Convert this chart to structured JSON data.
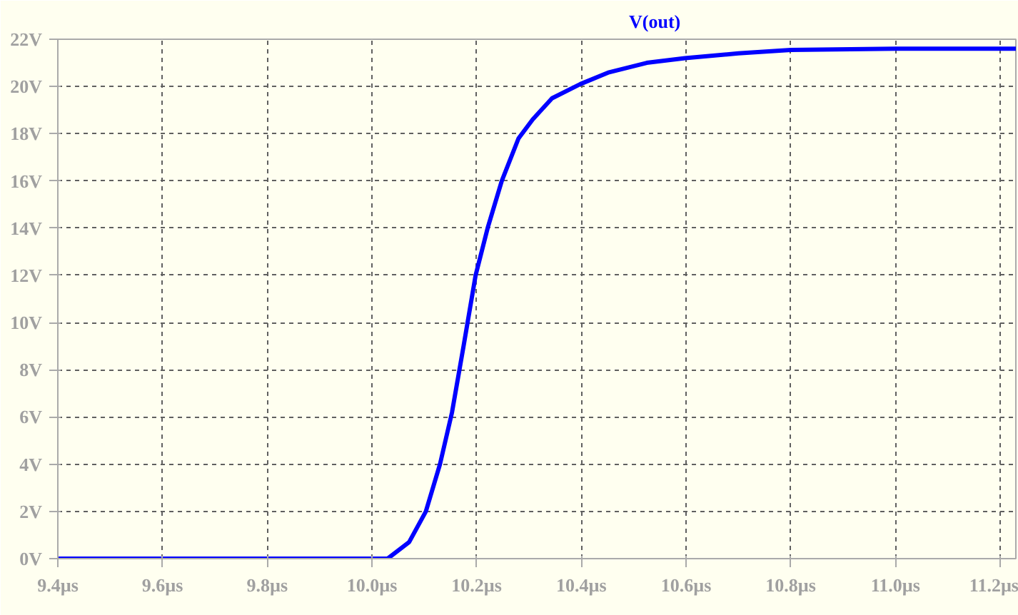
{
  "chart_data": {
    "type": "line",
    "title": "V(out)",
    "x": [
      9.4,
      10.0,
      10.03,
      10.071,
      10.103,
      10.13,
      10.153,
      10.175,
      10.198,
      10.221,
      10.248,
      10.28,
      10.307,
      10.344,
      10.398,
      10.453,
      10.525,
      10.598,
      10.7,
      10.8,
      11.0,
      11.23
    ],
    "series": [
      {
        "color": "#0000ff",
        "values": [
          0,
          0,
          0,
          0.7,
          2.0,
          4.0,
          6.2,
          9.0,
          12.0,
          14.0,
          16.0,
          17.8,
          18.6,
          19.5,
          20.1,
          20.6,
          21.0,
          21.2,
          21.4,
          21.55,
          21.6,
          21.6
        ]
      }
    ],
    "xlim": [
      9.4,
      11.23
    ],
    "ylim": [
      0,
      22
    ],
    "xticks": [
      {
        "value": 9.4,
        "label": "9.4µs"
      },
      {
        "value": 9.6,
        "label": "9.6µs"
      },
      {
        "value": 9.8,
        "label": "9.8µs"
      },
      {
        "value": 10.0,
        "label": "10.0µs"
      },
      {
        "value": 10.2,
        "label": "10.2µs"
      },
      {
        "value": 10.4,
        "label": "10.4µs"
      },
      {
        "value": 10.6,
        "label": "10.6µs"
      },
      {
        "value": 10.8,
        "label": "10.8µs"
      },
      {
        "value": 11.0,
        "label": "11.0µs"
      },
      {
        "value": 11.2,
        "label": "11.2µs"
      }
    ],
    "yticks": [
      {
        "value": 0,
        "label": "0V"
      },
      {
        "value": 2,
        "label": "2V"
      },
      {
        "value": 4,
        "label": "4V"
      },
      {
        "value": 6,
        "label": "6V"
      },
      {
        "value": 8,
        "label": "8V"
      },
      {
        "value": 10,
        "label": "10V"
      },
      {
        "value": 12,
        "label": "12V"
      },
      {
        "value": 14,
        "label": "14V"
      },
      {
        "value": 16,
        "label": "16V"
      },
      {
        "value": 18,
        "label": "18V"
      },
      {
        "value": 20,
        "label": "20V"
      },
      {
        "value": 22,
        "label": "22V"
      }
    ],
    "grid": true,
    "line_style": "solid"
  }
}
